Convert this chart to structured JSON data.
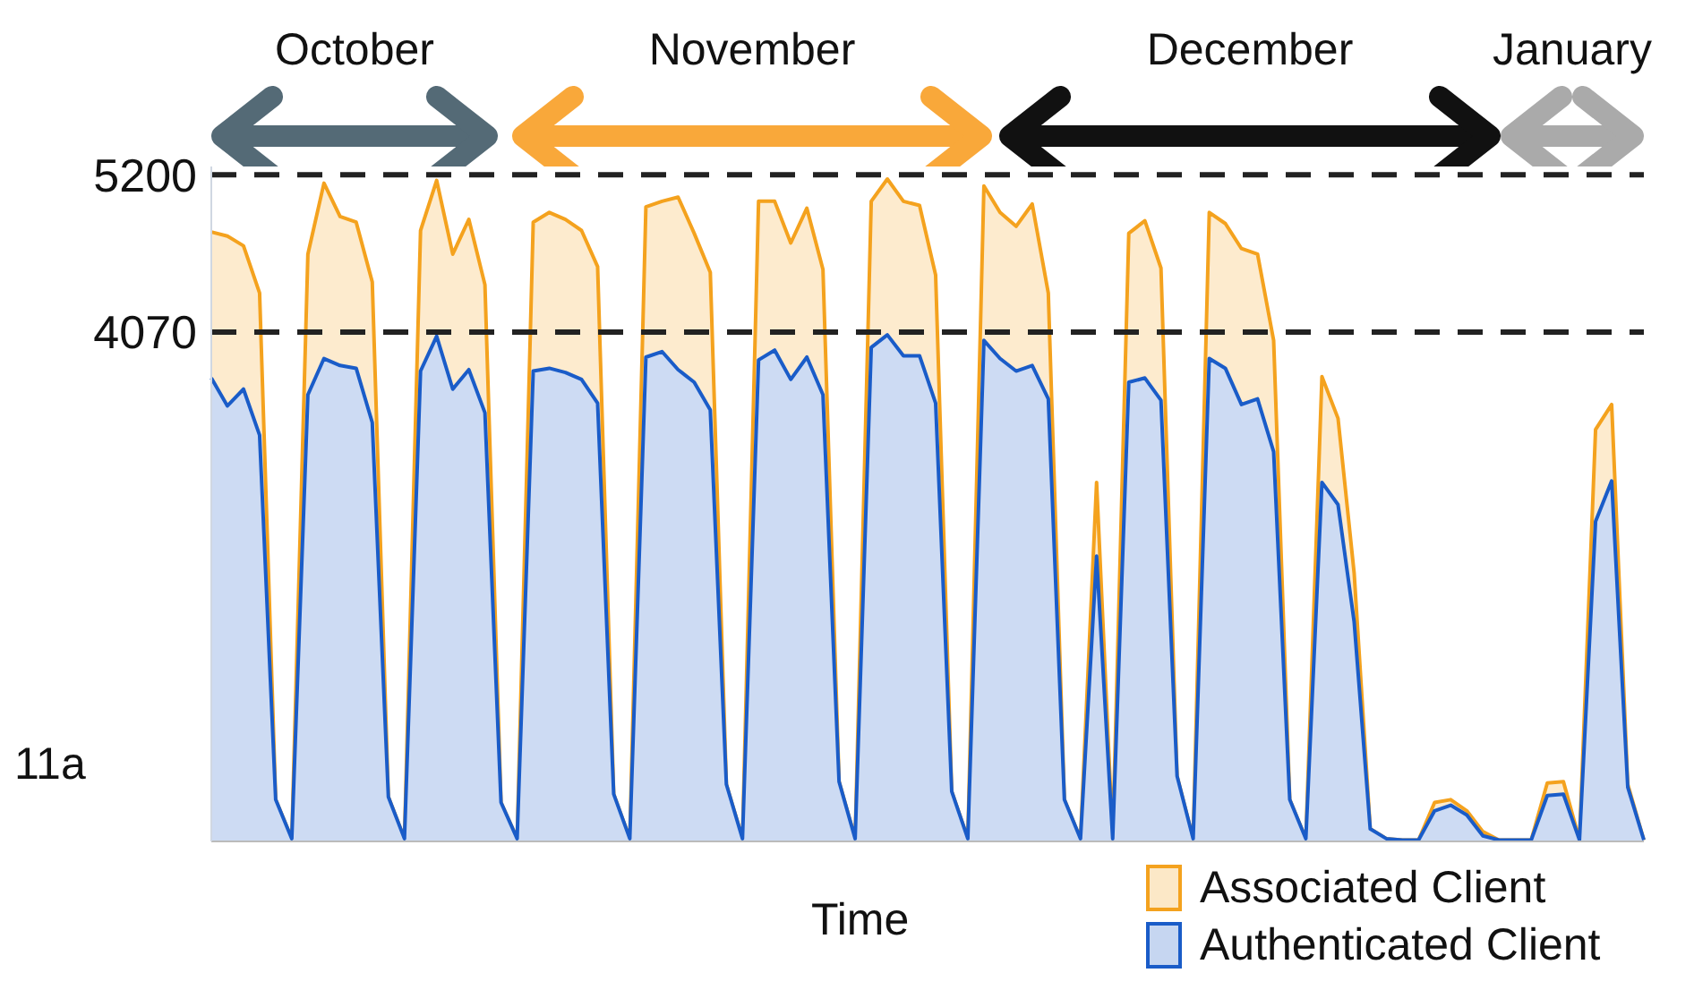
{
  "chart_data": {
    "type": "area",
    "xlabel": "Time",
    "categories": [
      null,
      null,
      null,
      null,
      null,
      null,
      null,
      null,
      null,
      null,
      null,
      null,
      null,
      null,
      null,
      null,
      null,
      null,
      null,
      null,
      null,
      null,
      null,
      null,
      null,
      null,
      null,
      null,
      null,
      null,
      null,
      null,
      null,
      null,
      null,
      null,
      null,
      null,
      null,
      null,
      null,
      null,
      null,
      null,
      null,
      null,
      null,
      null,
      null,
      null,
      null,
      null,
      null,
      null,
      null,
      null,
      null,
      null,
      null,
      null,
      null,
      null,
      null,
      null,
      null,
      null,
      null,
      null,
      null,
      null,
      null,
      null,
      null,
      null,
      null,
      null,
      null,
      null,
      null,
      null,
      null,
      null,
      null,
      null,
      null,
      null,
      null,
      null,
      null,
      null
    ],
    "series": [
      {
        "name": "Associated Client",
        "color": "#f4a21e",
        "values": [
          4790,
          4760,
          4690,
          4350,
          710,
          430,
          4630,
          5140,
          4900,
          4860,
          4430,
          730,
          430,
          4800,
          5160,
          4630,
          4880,
          4410,
          690,
          430,
          4860,
          4930,
          4880,
          4800,
          4540,
          750,
          430,
          4970,
          5010,
          5040,
          4780,
          4500,
          820,
          430,
          5010,
          5010,
          4710,
          4960,
          4520,
          840,
          430,
          5010,
          5170,
          5010,
          4980,
          4480,
          770,
          430,
          5120,
          4930,
          4830,
          4990,
          4350,
          710,
          430,
          2990,
          430,
          4780,
          4870,
          4530,
          880,
          430,
          4930,
          4850,
          4670,
          4630,
          4010,
          710,
          430,
          3750,
          3450,
          2340,
          500,
          430,
          420,
          420,
          690,
          710,
          630,
          480,
          420,
          420,
          420,
          830,
          840,
          420,
          3370,
          3550,
          820,
          420
        ]
      },
      {
        "name": "Authenticated Client",
        "color": "#1a5cc8",
        "values": [
          3740,
          3540,
          3660,
          3330,
          710,
          430,
          3620,
          3880,
          3830,
          3810,
          3420,
          730,
          430,
          3790,
          4040,
          3660,
          3800,
          3490,
          690,
          430,
          3790,
          3810,
          3780,
          3730,
          3560,
          750,
          430,
          3890,
          3930,
          3800,
          3710,
          3510,
          820,
          430,
          3870,
          3940,
          3730,
          3890,
          3620,
          840,
          430,
          3960,
          4050,
          3900,
          3900,
          3560,
          770,
          430,
          4010,
          3880,
          3790,
          3830,
          3590,
          710,
          430,
          2460,
          430,
          3710,
          3740,
          3580,
          880,
          430,
          3880,
          3810,
          3550,
          3590,
          3210,
          710,
          430,
          2990,
          2830,
          1990,
          500,
          430,
          420,
          420,
          630,
          670,
          600,
          450,
          420,
          420,
          420,
          740,
          750,
          420,
          2710,
          3000,
          800,
          420
        ]
      }
    ],
    "ylim": [
      410,
      5260
    ],
    "yticks": [
      4070,
      5200
    ],
    "ref_lines": [
      {
        "axis": "y",
        "value": 5200,
        "color": "#222222",
        "line_style": "dashed"
      },
      {
        "axis": "y",
        "value": 4070,
        "color": "#222222",
        "line_style": "dashed"
      }
    ],
    "annotations": [
      "October",
      "November",
      "December",
      "January",
      "11a"
    ],
    "legend": "bottom right"
  }
}
